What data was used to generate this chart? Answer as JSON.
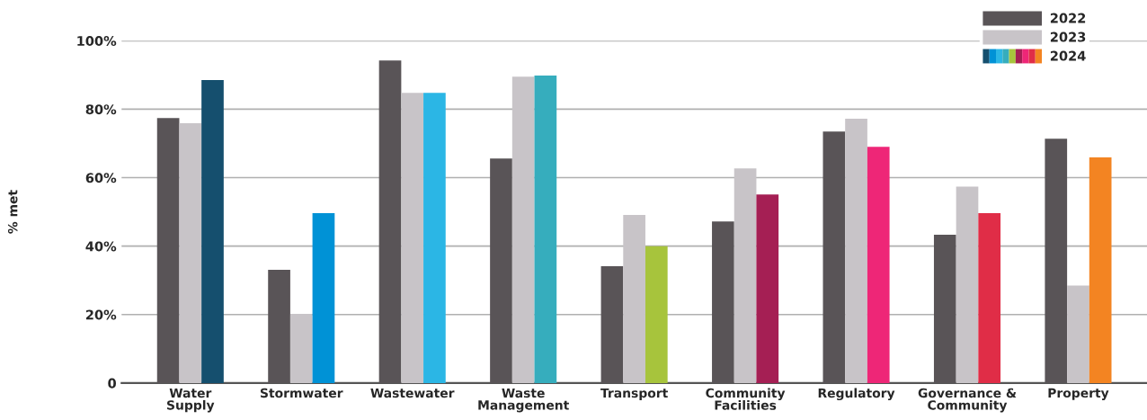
{
  "chart_data": {
    "type": "bar",
    "ylabel": "% met",
    "categories": [
      "Water\nSupply",
      "Stormwater",
      "Wastewater",
      "Waste\nManagement",
      "Transport",
      "Community\nFacilities",
      "Regulatory",
      "Governance &\nCommunity",
      "Property"
    ],
    "series": [
      {
        "name": "2022",
        "color": "#595457",
        "values": [
          77.4,
          33.1,
          94.2,
          65.6,
          34.1,
          47.2,
          73.5,
          43.3,
          71.4
        ]
      },
      {
        "name": "2023",
        "color": "#c8c4c8",
        "values": [
          75.9,
          20.2,
          84.8,
          89.5,
          49.1,
          62.7,
          77.2,
          57.4,
          28.5
        ]
      },
      {
        "name": "2024",
        "colors": [
          "#154f6e",
          "#0092d6",
          "#2bb6e5",
          "#36adbd",
          "#a7c43c",
          "#a51f54",
          "#ee2677",
          "#e02d47",
          "#f38422"
        ],
        "values": [
          88.5,
          49.6,
          84.8,
          89.8,
          40.0,
          55.1,
          69.0,
          49.6,
          65.9
        ]
      }
    ],
    "ylim": [
      0,
      100
    ],
    "yticks": [
      {
        "value": 0,
        "label": "0"
      },
      {
        "value": 20,
        "label": "20%"
      },
      {
        "value": 40,
        "label": "40%"
      },
      {
        "value": 60,
        "label": "60%"
      },
      {
        "value": 80,
        "label": "80%"
      },
      {
        "value": 100,
        "label": "100%"
      }
    ],
    "grid": "y",
    "legend": "top right"
  }
}
